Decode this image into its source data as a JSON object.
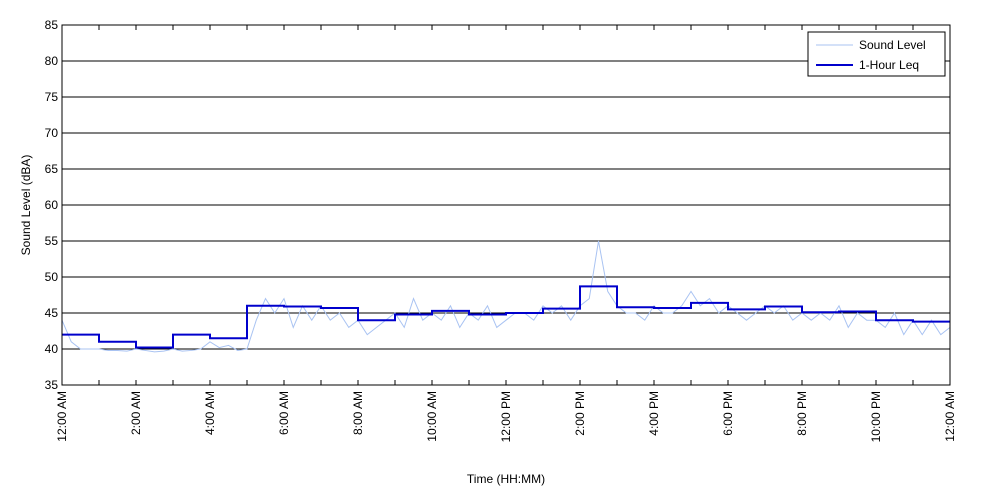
{
  "chart_data": {
    "type": "line",
    "title": "",
    "xlabel": "Time (HH:MM)",
    "ylabel": "Sound Level (dBA)",
    "ylim": [
      35,
      85
    ],
    "yticks": [
      35,
      40,
      45,
      50,
      55,
      60,
      65,
      70,
      75,
      80,
      85
    ],
    "xlim": [
      0,
      24
    ],
    "xtick_labels": [
      "12:00 AM",
      "2:00 AM",
      "4:00 AM",
      "6:00 AM",
      "8:00 AM",
      "10:00 AM",
      "12:00 PM",
      "2:00 PM",
      "4:00 PM",
      "6:00 PM",
      "8:00 PM",
      "10:00 PM",
      "12:00 AM"
    ],
    "grid": "horizontal",
    "legend_position": "top-right",
    "series": [
      {
        "name": "Sound Level",
        "style": "thin-line",
        "color": "#a9c3f2",
        "x": [
          0.0,
          0.25,
          0.5,
          0.75,
          1.0,
          1.25,
          1.5,
          1.75,
          2.0,
          2.25,
          2.5,
          2.75,
          3.0,
          3.25,
          3.5,
          3.75,
          4.0,
          4.25,
          4.5,
          4.75,
          5.0,
          5.25,
          5.5,
          5.75,
          6.0,
          6.25,
          6.5,
          6.75,
          7.0,
          7.25,
          7.5,
          7.75,
          8.0,
          8.25,
          8.5,
          8.75,
          9.0,
          9.25,
          9.5,
          9.75,
          10.0,
          10.25,
          10.5,
          10.75,
          11.0,
          11.25,
          11.5,
          11.75,
          12.0,
          12.25,
          12.5,
          12.75,
          13.0,
          13.25,
          13.5,
          13.75,
          14.0,
          14.25,
          14.5,
          14.75,
          15.0,
          15.25,
          15.5,
          15.75,
          16.0,
          16.25,
          16.5,
          16.75,
          17.0,
          17.25,
          17.5,
          17.75,
          18.0,
          18.25,
          18.5,
          18.75,
          19.0,
          19.25,
          19.5,
          19.75,
          20.0,
          20.25,
          20.5,
          20.75,
          21.0,
          21.25,
          21.5,
          21.75,
          22.0,
          22.25,
          22.5,
          22.75,
          23.0,
          23.25,
          23.5,
          23.75,
          24.0
        ],
        "y": [
          44,
          41,
          40,
          40,
          40,
          39.8,
          39.8,
          39.7,
          40,
          39.8,
          39.6,
          39.7,
          40,
          39.7,
          39.8,
          40,
          41,
          40.2,
          40.5,
          39.8,
          40,
          44,
          47,
          45,
          47,
          43,
          46,
          44,
          46,
          44,
          45,
          43,
          44,
          42,
          43,
          44,
          45,
          43,
          47,
          44,
          45,
          44,
          46,
          43,
          45,
          44,
          46,
          43,
          44,
          45,
          45,
          44,
          46,
          45,
          46,
          44,
          46,
          47,
          55,
          48,
          46,
          45,
          45,
          44,
          46,
          45,
          45,
          46,
          48,
          46,
          47,
          45,
          46,
          45,
          44,
          45,
          46,
          45,
          46,
          44,
          45,
          44,
          45,
          44,
          46,
          43,
          45,
          44,
          44,
          43,
          45,
          42,
          44,
          42,
          44,
          42,
          43
        ]
      },
      {
        "name": "1-Hour Leq",
        "style": "step",
        "color": "#0000cc",
        "x": [
          0,
          1,
          2,
          3,
          4,
          5,
          6,
          7,
          8,
          9,
          10,
          11,
          12,
          13,
          14,
          15,
          16,
          17,
          18,
          19,
          20,
          21,
          22,
          23
        ],
        "y": [
          42.0,
          41.0,
          40.2,
          42.0,
          41.5,
          46.0,
          45.9,
          45.7,
          44.0,
          44.8,
          45.3,
          44.8,
          45.0,
          45.6,
          48.7,
          45.8,
          45.7,
          46.4,
          45.5,
          45.9,
          45.1,
          45.2,
          44.0,
          43.8
        ]
      }
    ]
  }
}
